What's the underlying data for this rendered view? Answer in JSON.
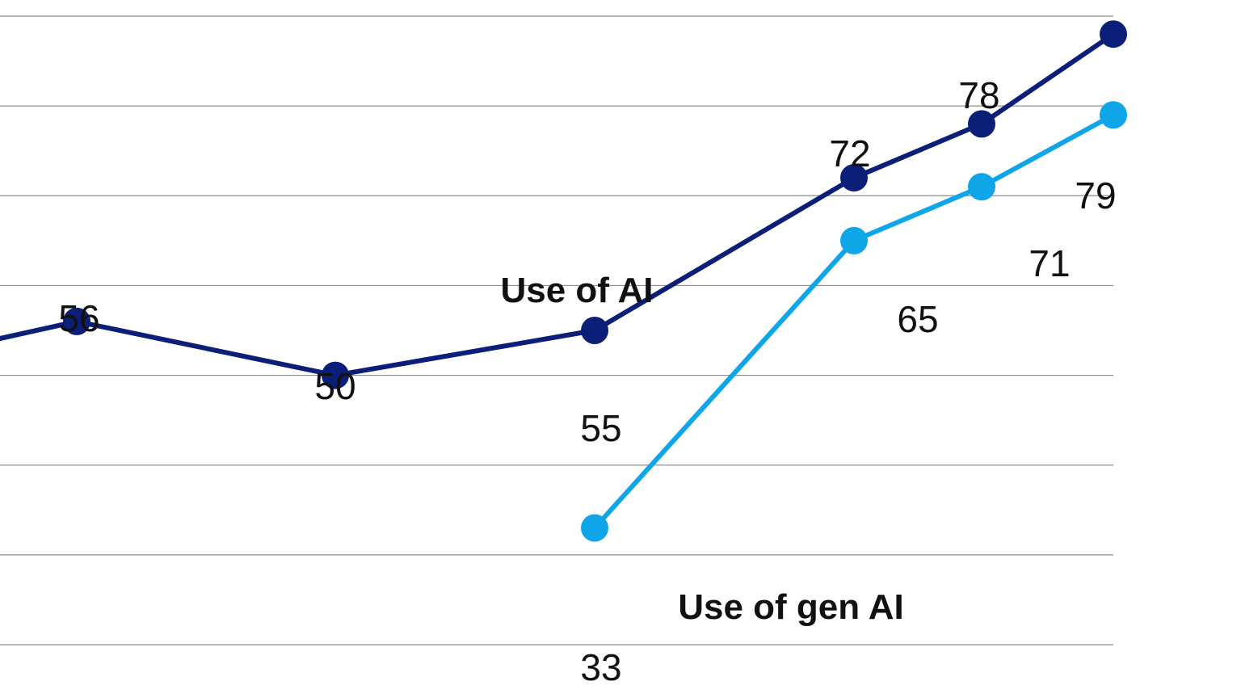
{
  "chart_data": {
    "type": "line",
    "title": "",
    "xlabel": "",
    "ylabel": "",
    "ylim": [
      20,
      90
    ],
    "grid": true,
    "colors": {
      "use_of_ai": "#0b1f78",
      "use_of_gen_ai": "#0ea5e9",
      "grid": "#8c8c8c"
    },
    "series": [
      {
        "name": "Use of AI",
        "key": "use_of_ai",
        "points": [
          {
            "x": 0,
            "y": 54,
            "label": ""
          },
          {
            "x": 1,
            "y": 56,
            "label": "56"
          },
          {
            "x": 2,
            "y": 50,
            "label": "50"
          },
          {
            "x": 3,
            "y": 55,
            "label": "55"
          },
          {
            "x": 4,
            "y": 72,
            "label": "72"
          },
          {
            "x": 5,
            "y": 78,
            "label": "78"
          },
          {
            "x": 6,
            "y": 88,
            "label": ""
          }
        ]
      },
      {
        "name": "Use of gen AI",
        "key": "use_of_gen_ai",
        "points": [
          {
            "x": 3,
            "y": 33,
            "label": "33"
          },
          {
            "x": 4,
            "y": 65,
            "label": "65"
          },
          {
            "x": 5,
            "y": 71,
            "label": "71"
          },
          {
            "x": 6,
            "y": 79,
            "label": "79"
          }
        ]
      }
    ]
  }
}
